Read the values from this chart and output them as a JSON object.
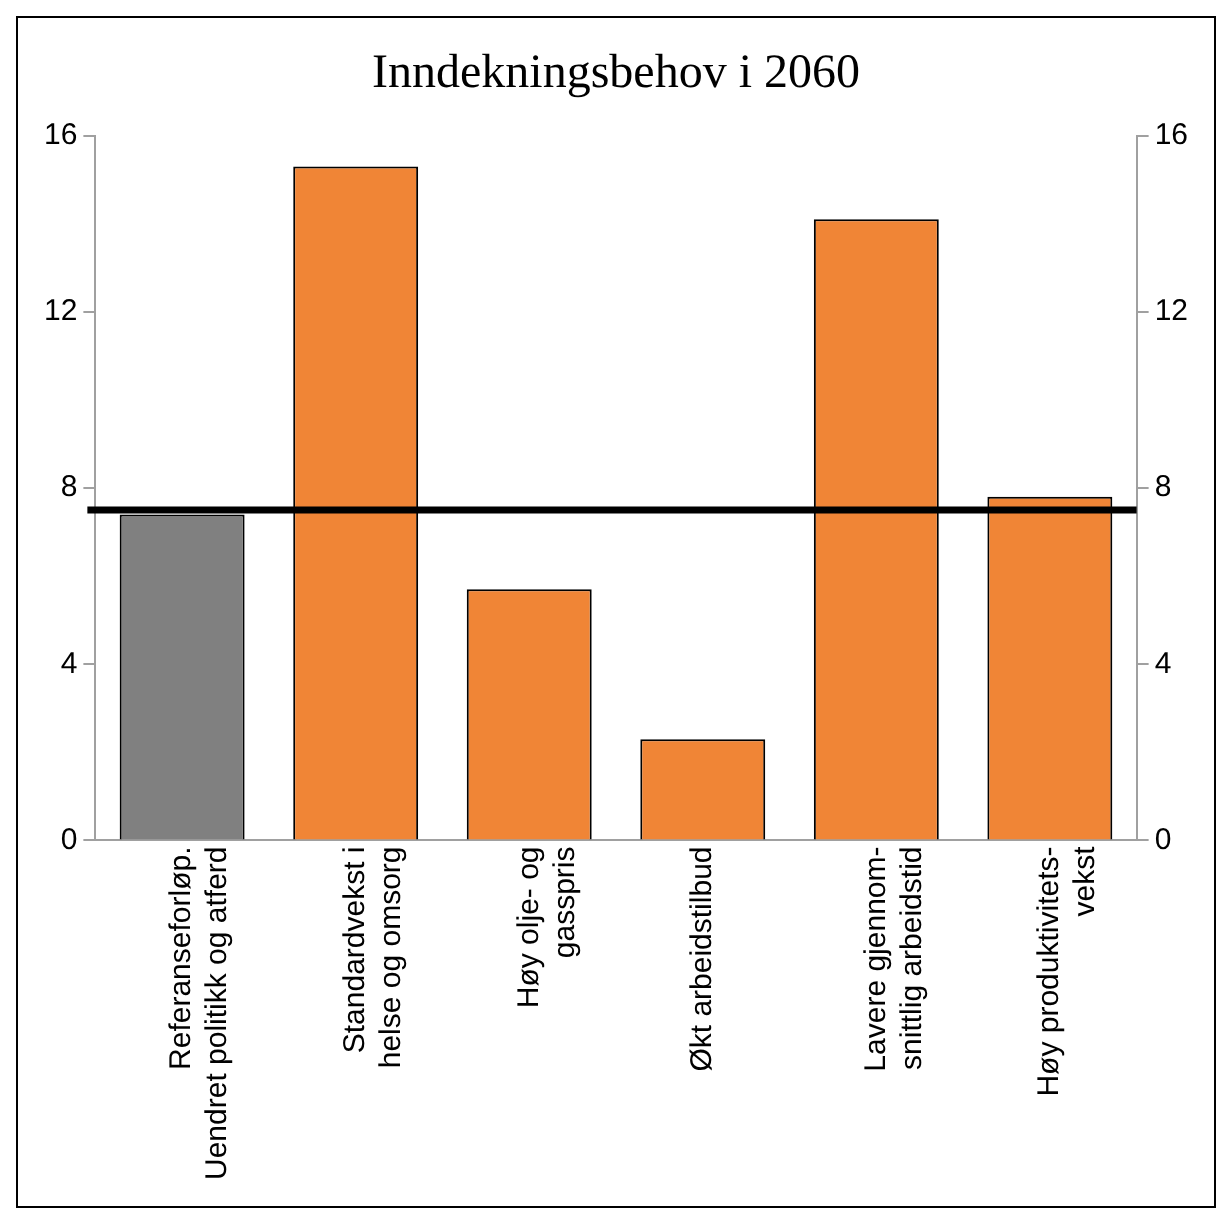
{
  "chart_data": {
    "type": "bar",
    "title": "Inndekningsbehov i 2060",
    "categories": [
      "Referanseforløp.\nUendret politikk og atferd",
      "Standardvekst i\nhelse og omsorg",
      "Høy olje- og\ngasspris",
      "Økt arbeidstilbud",
      "Lavere gjennom-\nsnittlig arbeidstid",
      "Høy produktivitets-\nvekst"
    ],
    "values": [
      7.4,
      15.3,
      5.7,
      2.3,
      14.1,
      7.8
    ],
    "colors": [
      "#808080",
      "#f08536",
      "#f08536",
      "#f08536",
      "#f08536",
      "#f08536"
    ],
    "ylim": [
      0,
      16
    ],
    "yticks": [
      0,
      4,
      8,
      12,
      16
    ],
    "y2lim": [
      0,
      16
    ],
    "y2ticks": [
      0,
      4,
      8,
      12,
      16
    ],
    "ref_lines": [
      {
        "axis": "y",
        "value": 7.5,
        "color": "#000000"
      }
    ],
    "grid": false,
    "legend": false
  }
}
